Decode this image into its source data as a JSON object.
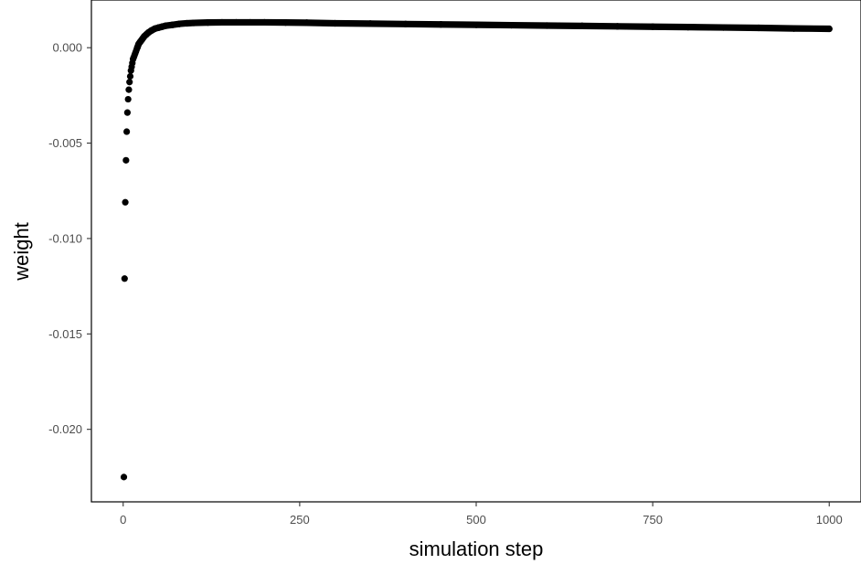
{
  "chart_data": {
    "type": "scatter",
    "title": "",
    "xlabel": "simulation step",
    "ylabel": "weight",
    "xlim": [
      -45,
      1045
    ],
    "ylim": [
      -0.0238,
      0.0025
    ],
    "x_ticks": [
      0,
      250,
      500,
      750,
      1000
    ],
    "x_tick_labels": [
      "0",
      "250",
      "500",
      "750",
      "1000"
    ],
    "y_ticks": [
      0.0,
      -0.005,
      -0.01,
      -0.015,
      -0.02
    ],
    "y_tick_labels": [
      "0.000",
      "-0.005",
      "-0.010",
      "-0.015",
      "-0.020"
    ],
    "grid": false,
    "point_color": "#000000",
    "series": [
      {
        "x": [
          1,
          2,
          3,
          4,
          5,
          6,
          7,
          8,
          9,
          10,
          11,
          12,
          13,
          14,
          15,
          16,
          17,
          18,
          19,
          20,
          22,
          24,
          26,
          28,
          30,
          33,
          36,
          40,
          45,
          50,
          55,
          60,
          70,
          80,
          90,
          100,
          120,
          140,
          160,
          180,
          200,
          230,
          260,
          300,
          350,
          400,
          450,
          500,
          550,
          600,
          650,
          700,
          750,
          800,
          850,
          900,
          950,
          1000
        ],
        "y": [
          -0.0225,
          -0.0121,
          -0.0081,
          -0.0059,
          -0.0044,
          -0.0034,
          -0.0027,
          -0.0022,
          -0.0018,
          -0.0015,
          -0.0012,
          -0.001,
          -0.0008,
          -0.0006,
          -0.0005,
          -0.0004,
          -0.0003,
          -0.0002,
          -0.0001,
          0.0,
          0.0002,
          0.0003,
          0.0004,
          0.0005,
          0.0006,
          0.0007,
          0.0008,
          0.0009,
          0.001,
          0.00105,
          0.0011,
          0.00115,
          0.0012,
          0.00125,
          0.00128,
          0.0013,
          0.00132,
          0.00133,
          0.00133,
          0.00133,
          0.00133,
          0.00132,
          0.00131,
          0.00128,
          0.00126,
          0.00124,
          0.00122,
          0.0012,
          0.00118,
          0.00116,
          0.00114,
          0.00112,
          0.0011,
          0.00108,
          0.00106,
          0.00104,
          0.00101,
          0.00099
        ]
      }
    ]
  }
}
